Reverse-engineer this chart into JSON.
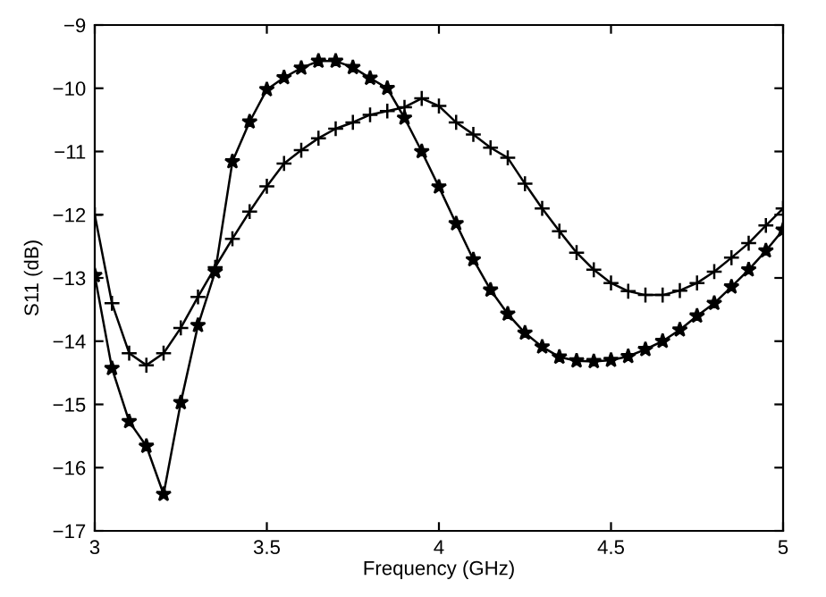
{
  "chart_data": {
    "type": "line",
    "xlabel": "Frequency (GHz)",
    "ylabel": "S11 (dB)",
    "x": [
      3.0,
      3.05,
      3.1,
      3.15,
      3.2,
      3.25,
      3.3,
      3.35,
      3.4,
      3.45,
      3.5,
      3.55,
      3.6,
      3.65,
      3.7,
      3.75,
      3.8,
      3.85,
      3.9,
      3.95,
      4.0,
      4.05,
      4.1,
      4.15,
      4.2,
      4.25,
      4.3,
      4.35,
      4.4,
      4.45,
      4.5,
      4.55,
      4.6,
      4.65,
      4.7,
      4.75,
      4.8,
      4.85,
      4.9,
      4.95,
      5.0
    ],
    "series": [
      {
        "color": "#000000",
        "marker": "cross",
        "values": [
          -12.0,
          -13.4,
          -14.19,
          -14.38,
          -14.19,
          -13.79,
          -13.3,
          -12.83,
          -12.38,
          -11.95,
          -11.55,
          -11.19,
          -10.98,
          -10.79,
          -10.64,
          -10.54,
          -10.42,
          -10.36,
          -10.3,
          -10.16,
          -10.28,
          -10.54,
          -10.73,
          -10.94,
          -11.1,
          -11.51,
          -11.9,
          -12.26,
          -12.6,
          -12.87,
          -13.08,
          -13.21,
          -13.27,
          -13.27,
          -13.2,
          -13.08,
          -12.9,
          -12.68,
          -12.45,
          -12.17,
          -11.9
        ]
      },
      {
        "color": "#000000",
        "marker": "star",
        "values": [
          -12.96,
          -14.43,
          -15.27,
          -15.66,
          -16.42,
          -14.97,
          -13.75,
          -12.9,
          -11.16,
          -10.53,
          -10.02,
          -9.83,
          -9.68,
          -9.57,
          -9.57,
          -9.67,
          -9.84,
          -10.0,
          -10.47,
          -11.0,
          -11.56,
          -12.14,
          -12.71,
          -13.19,
          -13.57,
          -13.87,
          -14.09,
          -14.25,
          -14.31,
          -14.32,
          -14.3,
          -14.24,
          -14.13,
          -14.0,
          -13.82,
          -13.6,
          -13.4,
          -13.14,
          -12.87,
          -12.57,
          -12.24
        ]
      }
    ],
    "xlim": [
      3,
      5
    ],
    "xticks": [
      3,
      3.5,
      4,
      4.5,
      5
    ],
    "ylim": [
      -17,
      -9
    ],
    "yticks": [
      -17,
      -16,
      -15,
      -14,
      -13,
      -12,
      -11,
      -10,
      -9
    ],
    "grid": false,
    "legend": false,
    "line_style": "solid"
  }
}
